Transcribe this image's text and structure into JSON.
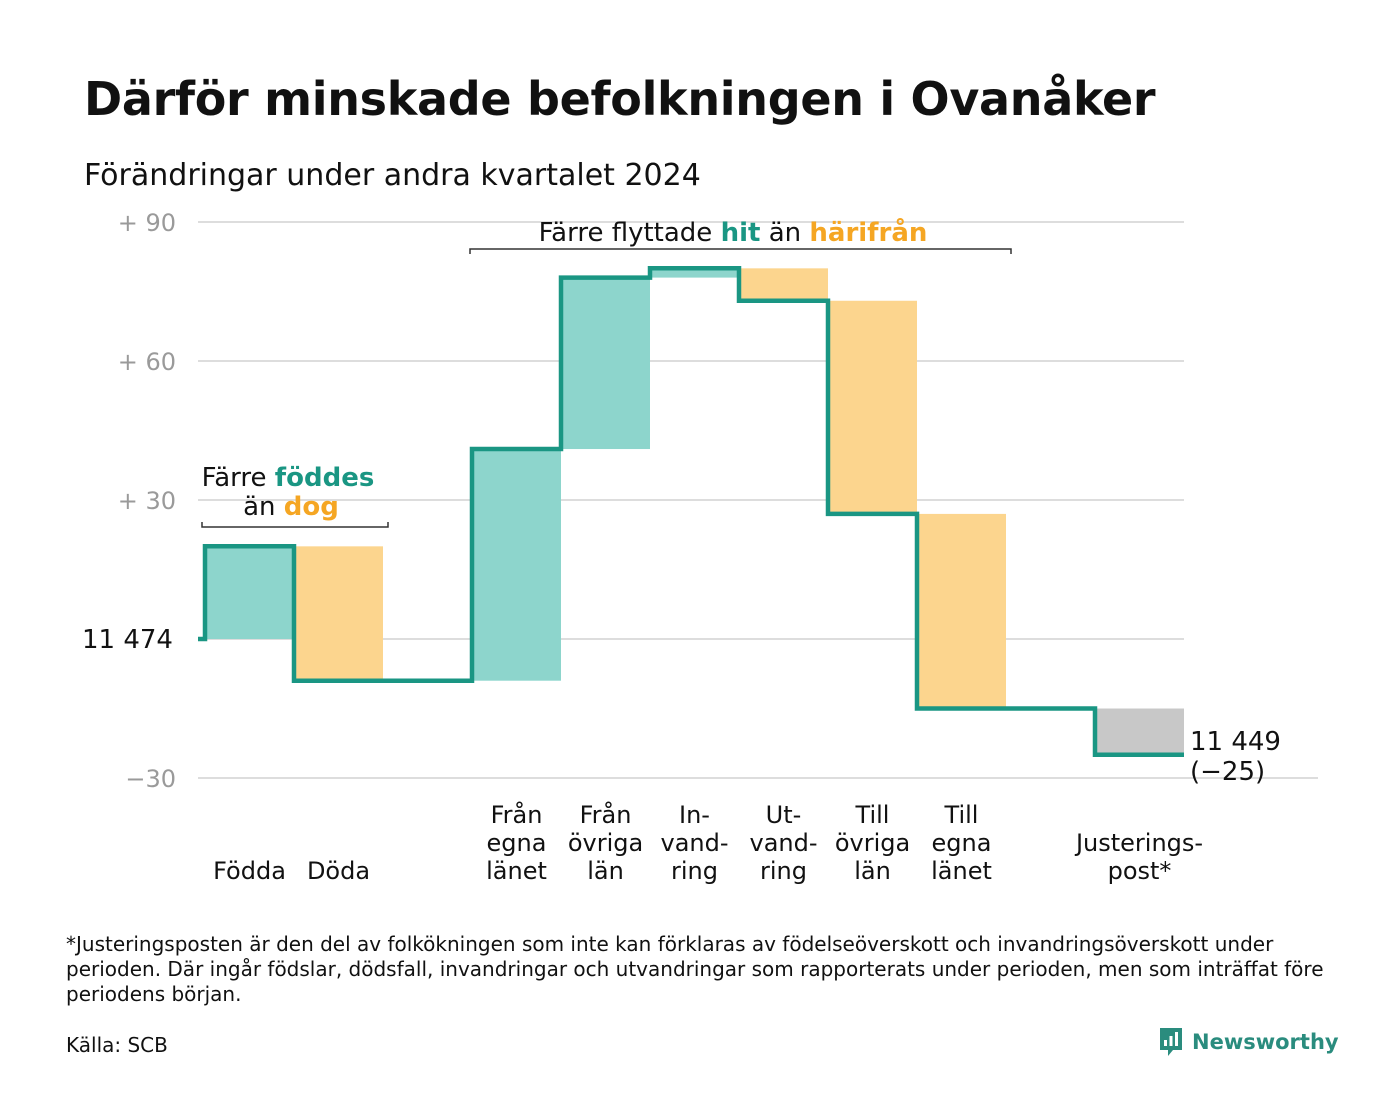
{
  "title": "Därför minskade befolkningen i Ovanåker",
  "subtitle": "Förändringar under andra kvartalet 2024",
  "footnote": "*Justeringsposten är den del av folkökningen som inte kan förklaras av födelseöverskott och invandringsöverskott under perioden. Där ingår födslar, dödsfall, invandringar och utvandringar som rapporterats under perioden, men som inträffat före periodens början.",
  "source": "Källa: SCB",
  "brand": {
    "name": "Newsworthy"
  },
  "colors": {
    "increase": "#8dd5cc",
    "decrease": "#fcd58e",
    "adjustment": "#c8c8c8",
    "line": "#1a9683",
    "teal_text": "#1a9683",
    "orange_text": "#f5a623",
    "grid": "#dddddd",
    "tick": "#9a9a9a"
  },
  "chart_data": {
    "type": "waterfall",
    "start_label": "11  474",
    "end_label": [
      "11 449",
      "(−25)"
    ],
    "yticks": [
      {
        "value": 90,
        "label": "+  90"
      },
      {
        "value": 60,
        "label": "+  60"
      },
      {
        "value": 30,
        "label": "+  30"
      },
      {
        "value": 0,
        "label": ""
      },
      {
        "value": -30,
        "label": "−30"
      }
    ],
    "ylim": [
      -30,
      90
    ],
    "steps": [
      {
        "slot": 0,
        "labels": [
          "Födda"
        ],
        "value": 20,
        "kind": "increase"
      },
      {
        "slot": 1,
        "labels": [
          "Döda"
        ],
        "value": -29,
        "kind": "decrease"
      },
      {
        "slot": 3,
        "labels": [
          "Från",
          "egna",
          "länet"
        ],
        "value": 50,
        "kind": "increase"
      },
      {
        "slot": 4,
        "labels": [
          "Från",
          "övriga",
          "län"
        ],
        "value": 37,
        "kind": "increase"
      },
      {
        "slot": 5,
        "labels": [
          "In-",
          "vand-",
          "ring"
        ],
        "value": 2,
        "kind": "increase"
      },
      {
        "slot": 6,
        "labels": [
          "Ut-",
          "vand-",
          "ring"
        ],
        "value": -7,
        "kind": "decrease"
      },
      {
        "slot": 7,
        "labels": [
          "Till",
          "övriga",
          "län"
        ],
        "value": -46,
        "kind": "decrease"
      },
      {
        "slot": 8,
        "labels": [
          "Till",
          "egna",
          "länet"
        ],
        "value": -42,
        "kind": "decrease"
      },
      {
        "slot": 10,
        "labels": [
          "Justerings-",
          "post*"
        ],
        "value": -10,
        "kind": "adjustment"
      }
    ],
    "annotations": {
      "births": {
        "line1": "Färre",
        "highlight1": "föddes",
        "line2": "än",
        "highlight2": "dog"
      },
      "migration": {
        "prefix": "Färre flyttade",
        "highlight1": "hit",
        "mid": "än",
        "highlight2": "härifrån"
      }
    }
  }
}
